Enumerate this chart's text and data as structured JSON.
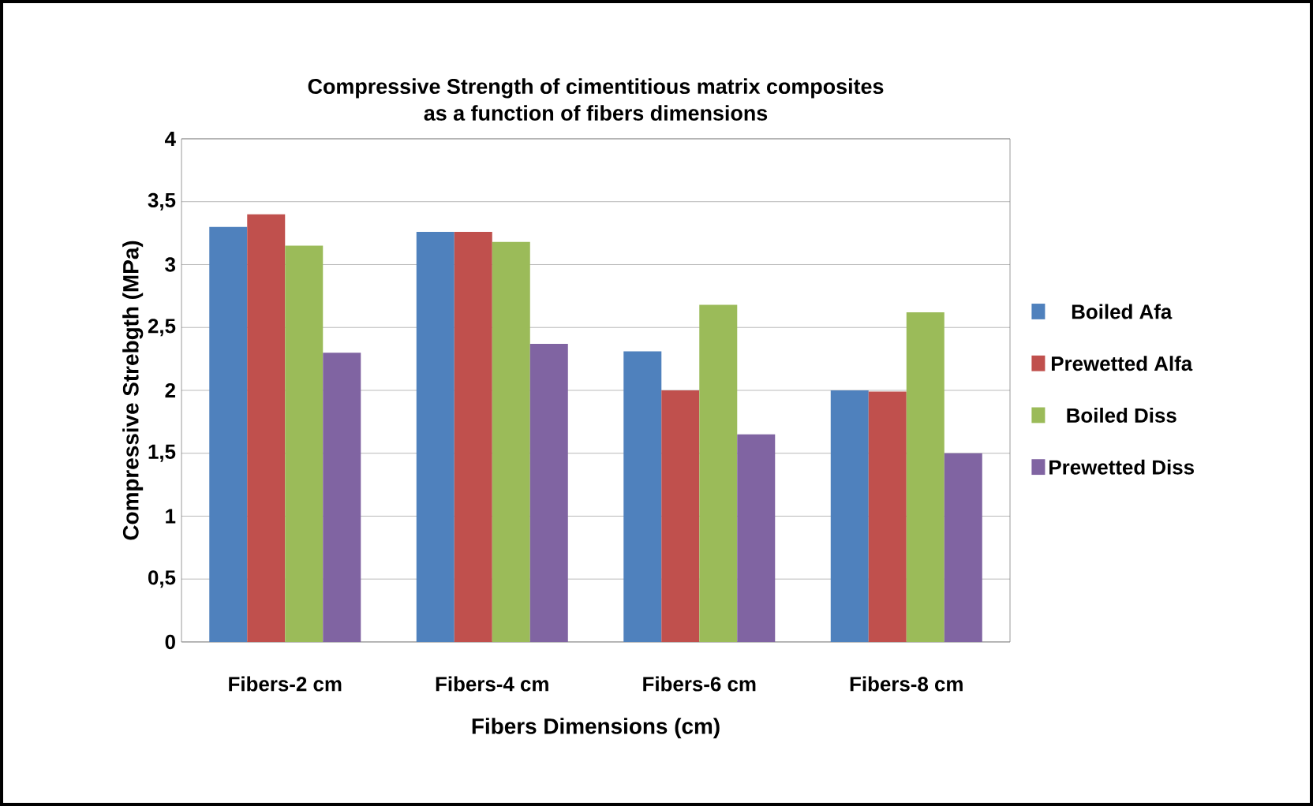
{
  "chart_data": {
    "type": "bar",
    "title": "Compressive Strength of cimentitious matrix composites\nas a function of fibers dimensions",
    "xlabel": "Fibers Dimensions (cm)",
    "ylabel": "Compressive  Strebgth (MPa)",
    "categories": [
      "Fibers-2 cm",
      "Fibers-4 cm",
      "Fibers-6 cm",
      "Fibers-8 cm"
    ],
    "series": [
      {
        "name": "Boiled Afa",
        "color": "#4f81bd",
        "values": [
          3.3,
          3.26,
          2.31,
          2.0
        ]
      },
      {
        "name": "Prewetted Alfa",
        "color": "#c0504d",
        "values": [
          3.4,
          3.26,
          2.0,
          1.99
        ]
      },
      {
        "name": "Boiled Diss",
        "color": "#9bbb59",
        "values": [
          3.15,
          3.18,
          2.68,
          2.62
        ]
      },
      {
        "name": "Prewetted Diss",
        "color": "#8064a2",
        "values": [
          2.3,
          2.37,
          1.65,
          1.5
        ]
      }
    ],
    "ylim": [
      0,
      4
    ],
    "yticks": [
      0,
      {
        "value": 0.5,
        "label": "0,5"
      },
      1,
      {
        "value": 1.5,
        "label": "1,5"
      },
      2,
      {
        "value": 2.5,
        "label": "2,5"
      },
      3,
      {
        "value": 3.5,
        "label": "3,5"
      },
      4
    ],
    "grid": "y",
    "legend": "right"
  }
}
